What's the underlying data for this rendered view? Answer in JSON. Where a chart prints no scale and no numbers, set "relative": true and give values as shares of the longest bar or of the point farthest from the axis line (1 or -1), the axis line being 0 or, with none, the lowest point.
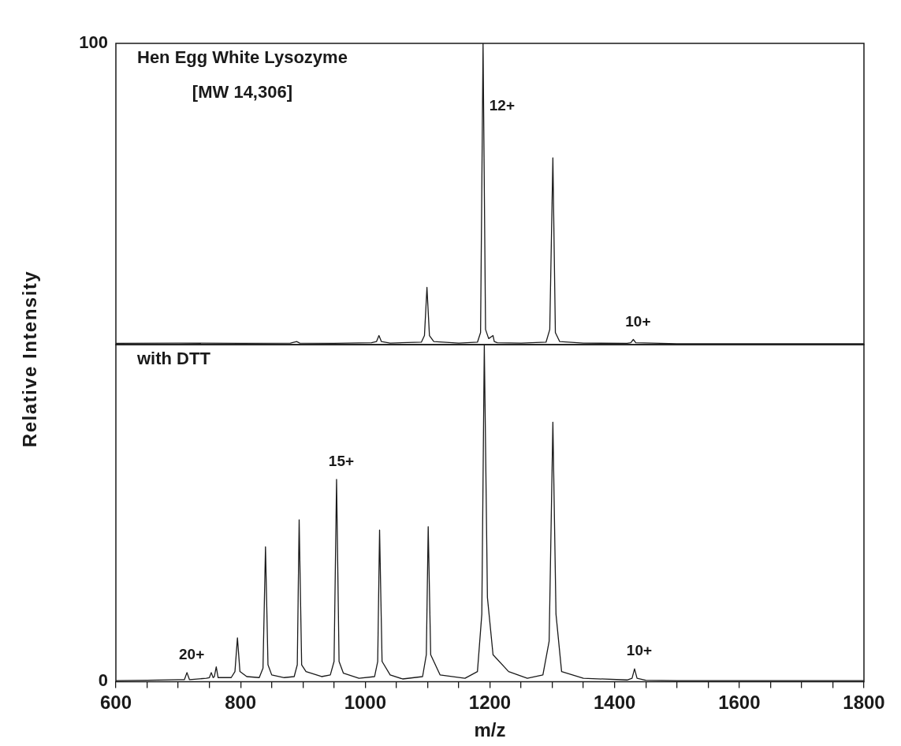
{
  "chart_data": [
    {
      "type": "line",
      "title": "Hen Egg White Lysozyme",
      "subtitle": "[MW 14,306]",
      "ylabel": "Relative Intensity",
      "relative": true,
      "xlim": [
        600,
        1800
      ],
      "tick_labels": false,
      "marker": "none",
      "line_style": "solid",
      "legend": false,
      "grid": false,
      "color": "#1a1a1a",
      "x": [
        600,
        700,
        800,
        880,
        890,
        895,
        950,
        1010,
        1018,
        1022,
        1026,
        1040,
        1090,
        1095,
        1099,
        1103,
        1110,
        1150,
        1180,
        1185,
        1189,
        1193,
        1198,
        1205,
        1207,
        1212,
        1250,
        1290,
        1296,
        1301,
        1305,
        1312,
        1350,
        1420,
        1426,
        1430,
        1434,
        1500,
        1600,
        1700,
        1800
      ],
      "values": [
        0.004,
        0.005,
        0.004,
        0.005,
        0.01,
        0.005,
        0.004,
        0.006,
        0.01,
        0.03,
        0.01,
        0.005,
        0.008,
        0.03,
        0.19,
        0.03,
        0.01,
        0.005,
        0.008,
        0.04,
        1.0,
        0.05,
        0.02,
        0.03,
        0.01,
        0.006,
        0.005,
        0.008,
        0.05,
        0.62,
        0.04,
        0.01,
        0.005,
        0.004,
        0.006,
        0.017,
        0.006,
        0.003,
        0.003,
        0.003,
        0.003
      ],
      "annotations": [
        "100",
        {
          "text": "12+",
          "x": 1189,
          "y": 0.79
        },
        {
          "text": "10+",
          "x": 1430,
          "y": 0.017
        }
      ]
    },
    {
      "type": "line",
      "title": "with DTT",
      "xlabel": "m/z",
      "relative": true,
      "xlim": [
        600,
        1800
      ],
      "tick_labels": "x",
      "marker": "none",
      "line_style": "solid",
      "legend": false,
      "grid": false,
      "color": "#1a1a1a",
      "xticks": [
        600,
        {
          "value": 650,
          "label": null
        },
        800,
        {
          "value": 700,
          "label": null
        },
        {
          "value": 750,
          "label": null
        },
        {
          "value": 850,
          "label": null
        },
        1000,
        {
          "value": 900,
          "label": null
        },
        {
          "value": 950,
          "label": null
        },
        {
          "value": 1050,
          "label": null
        },
        1200,
        {
          "value": 1100,
          "label": null
        },
        {
          "value": 1150,
          "label": null
        },
        {
          "value": 1250,
          "label": null
        },
        1400,
        {
          "value": 1300,
          "label": null
        },
        {
          "value": 1350,
          "label": null
        },
        {
          "value": 1450,
          "label": null
        },
        1600,
        {
          "value": 1500,
          "label": null
        },
        {
          "value": 1550,
          "label": null
        },
        {
          "value": 1650,
          "label": null
        },
        1800,
        {
          "value": 1700,
          "label": null
        },
        {
          "value": 1750,
          "label": null
        }
      ],
      "x": [
        600,
        650,
        700,
        710,
        714,
        718,
        745,
        750,
        753,
        756,
        758,
        761,
        764,
        785,
        791,
        795,
        799,
        810,
        830,
        836,
        840,
        844,
        850,
        870,
        886,
        891,
        894,
        898,
        905,
        930,
        944,
        950,
        954,
        958,
        965,
        990,
        1015,
        1020,
        1023,
        1027,
        1040,
        1060,
        1092,
        1098,
        1101,
        1105,
        1120,
        1160,
        1180,
        1187,
        1191,
        1196,
        1205,
        1230,
        1260,
        1285,
        1295,
        1301,
        1306,
        1315,
        1350,
        1420,
        1428,
        1432,
        1436,
        1450,
        1500,
        1600,
        1700,
        1800
      ],
      "values": [
        0.003,
        0.004,
        0.006,
        0.006,
        0.027,
        0.006,
        0.01,
        0.012,
        0.027,
        0.012,
        0.015,
        0.044,
        0.012,
        0.012,
        0.03,
        0.13,
        0.03,
        0.015,
        0.012,
        0.04,
        0.4,
        0.05,
        0.02,
        0.012,
        0.015,
        0.05,
        0.48,
        0.05,
        0.03,
        0.015,
        0.02,
        0.06,
        0.6,
        0.06,
        0.025,
        0.01,
        0.015,
        0.06,
        0.45,
        0.06,
        0.02,
        0.008,
        0.015,
        0.08,
        0.46,
        0.08,
        0.02,
        0.01,
        0.03,
        0.2,
        1.0,
        0.25,
        0.08,
        0.03,
        0.01,
        0.02,
        0.12,
        0.77,
        0.2,
        0.03,
        0.01,
        0.005,
        0.01,
        0.038,
        0.01,
        0.004,
        0.003,
        0.003,
        0.003,
        0.003
      ],
      "annotations": [
        "0",
        {
          "text": "20+",
          "x": 714,
          "y": 0.027
        },
        {
          "text": "15+",
          "x": 954,
          "y": 0.6
        },
        {
          "text": "10+",
          "x": 1432,
          "y": 0.038
        }
      ]
    }
  ]
}
